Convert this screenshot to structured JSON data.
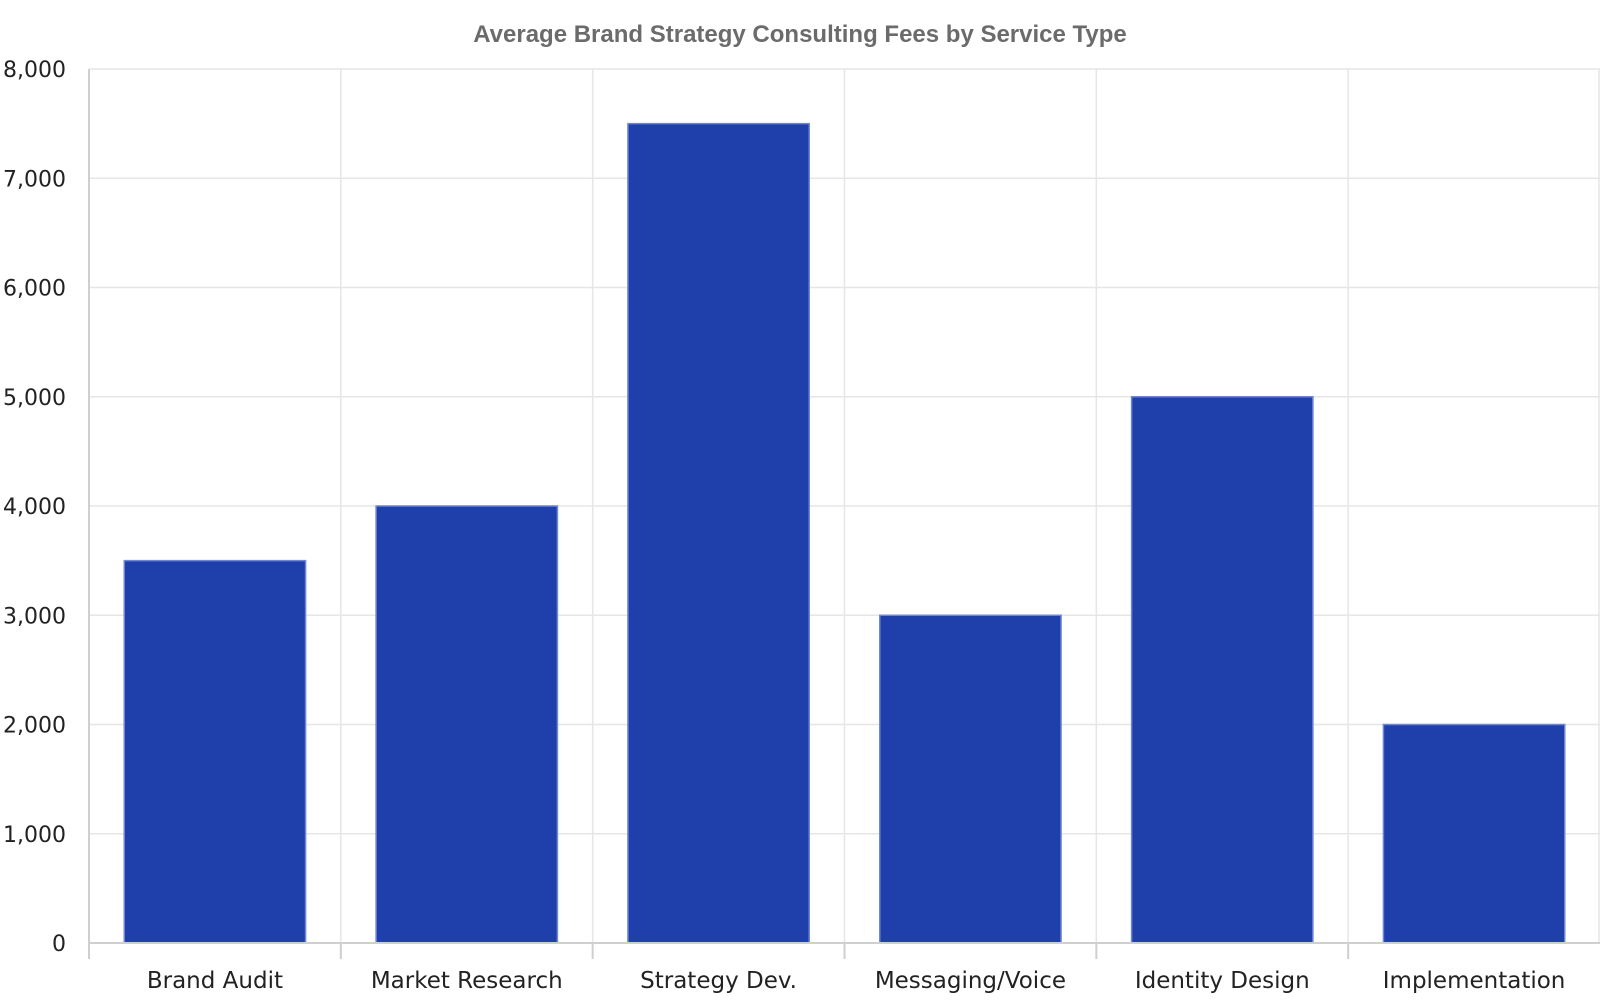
{
  "chart_data": {
    "type": "bar",
    "title": "Average Brand Strategy Consulting Fees by Service Type",
    "xlabel": "",
    "ylabel": "",
    "categories": [
      "Brand Audit",
      "Market Research",
      "Strategy Dev.",
      "Messaging/Voice",
      "Identity Design",
      "Implementation"
    ],
    "values": [
      3500,
      4000,
      7500,
      3000,
      5000,
      2000
    ],
    "ylim": [
      0,
      8000
    ],
    "yticks": [
      0,
      1000,
      2000,
      3000,
      4000,
      5000,
      6000,
      7000,
      8000
    ],
    "ytick_labels": [
      "0",
      "1,000",
      "2,000",
      "3,000",
      "4,000",
      "5,000",
      "6,000",
      "7,000",
      "8,000"
    ],
    "grid": true,
    "legend": "none",
    "colors": {
      "bar_fill": "#1f40ab",
      "bar_edge": "#6f86d6",
      "grid": "#e6e6e6",
      "axis": "#cfcfcf",
      "title": "#6b6b6b",
      "tick_text": "#222222"
    }
  }
}
